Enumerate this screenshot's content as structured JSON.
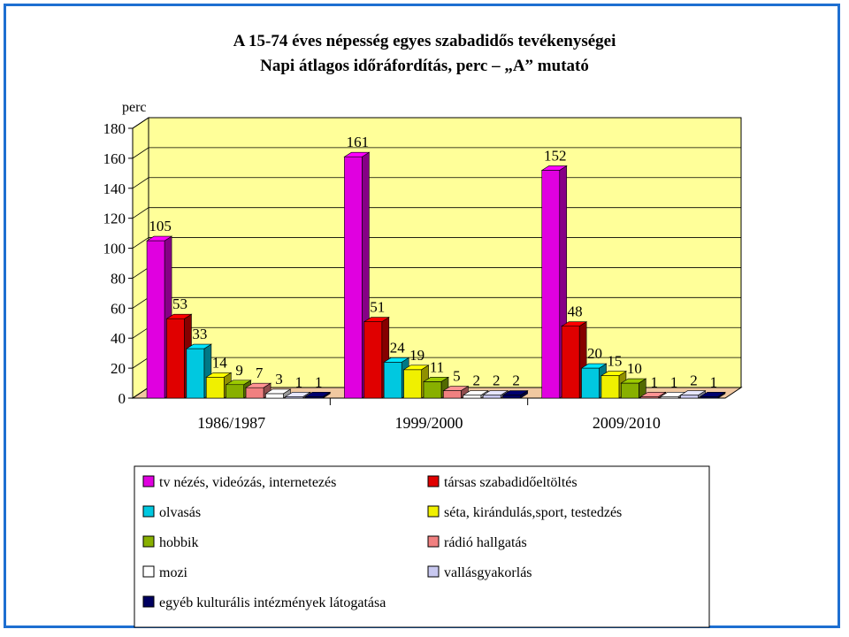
{
  "chart_data": {
    "type": "bar",
    "title": "A 15-74 éves népesség egyes szabadidős tevékenységei",
    "subtitle": "Napi átlagos időráfordítás, perc – „A” mutató",
    "ylabel": "perc",
    "xlabel": "",
    "ylim": [
      0,
      180
    ],
    "yticks": [
      "0",
      "20",
      "40",
      "60",
      "80",
      "100",
      "120",
      "140",
      "160",
      "180"
    ],
    "categories": [
      "1986/1987",
      "1999/2000",
      "2009/2010"
    ],
    "grid": true,
    "legend_position": "bottom",
    "series": [
      {
        "name": "tv nézés, videózás, internetezés",
        "color": "#e000e0",
        "values": [
          105,
          161,
          152
        ],
        "labels": [
          "105",
          "161",
          "152"
        ]
      },
      {
        "name": "társas szabadidőeltöltés",
        "color": "#e00000",
        "values": [
          53,
          51,
          48
        ],
        "labels": [
          "53",
          "51",
          "48"
        ]
      },
      {
        "name": "olvasás",
        "color": "#00c8e0",
        "values": [
          33,
          24,
          20
        ],
        "labels": [
          "33",
          "24",
          "20"
        ]
      },
      {
        "name": "séta, kirándulás,sport, testedzés",
        "color": "#f0f000",
        "values": [
          14,
          19,
          15
        ],
        "labels": [
          "14",
          "19",
          "15"
        ]
      },
      {
        "name": "hobbik",
        "color": "#88b000",
        "values": [
          9,
          11,
          10
        ],
        "labels": [
          "9",
          "11",
          "10"
        ]
      },
      {
        "name": "rádió hallgatás",
        "color": "#f08080",
        "values": [
          7,
          5,
          1
        ],
        "labels": [
          "7",
          "5",
          "1"
        ]
      },
      {
        "name": "mozi",
        "color": "#ffffff",
        "values": [
          3,
          2,
          1
        ],
        "labels": [
          "3",
          "2",
          "1"
        ]
      },
      {
        "name": "vallásgyakorlás",
        "color": "#c8c8f0",
        "values": [
          1,
          2,
          2
        ],
        "labels": [
          "1",
          "2",
          "2"
        ]
      },
      {
        "name": "egyéb kulturális intézmények látogatása",
        "color": "#000060",
        "values": [
          1,
          2,
          1
        ],
        "labels": [
          "1",
          "2",
          "1"
        ]
      }
    ]
  },
  "style": {
    "frame_color": "#1e6fd1",
    "wall_color": "#ffff99",
    "floor_color": "#f0c8a0"
  }
}
